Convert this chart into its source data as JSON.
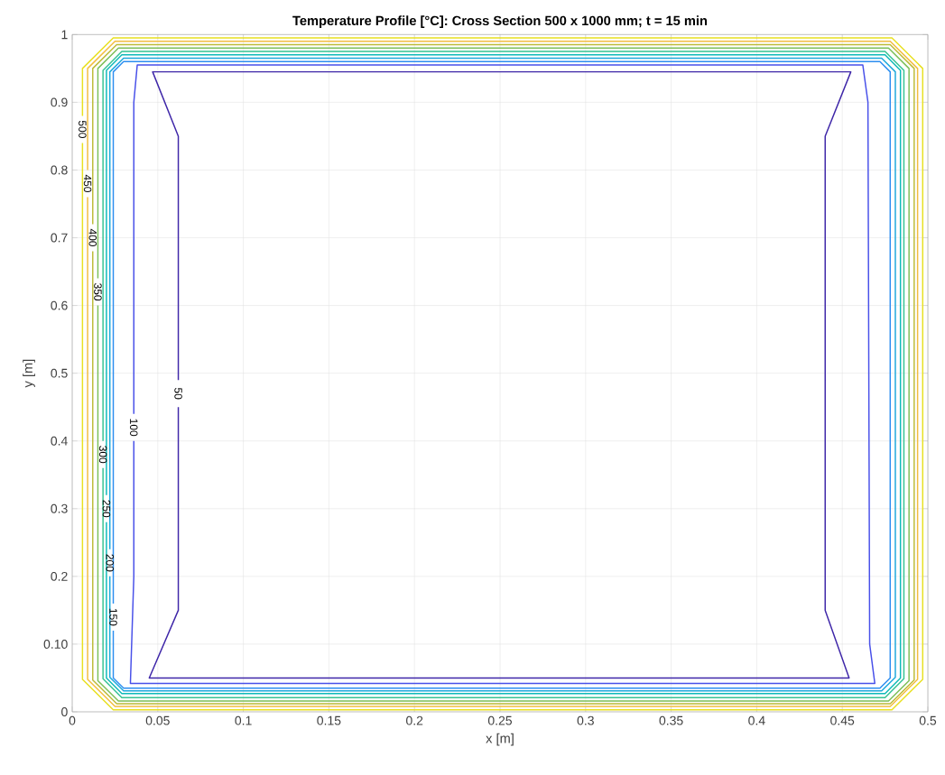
{
  "chart_data": {
    "type": "line",
    "title": "Temperature Profile [°C]: Cross Section 500 x 1000 mm; t = 15 min",
    "xlabel": "x [m]",
    "ylabel": "y [m]",
    "xlim": [
      0,
      0.5
    ],
    "ylim": [
      0,
      1
    ],
    "xticks": [
      0,
      0.05,
      0.1,
      0.15,
      0.2,
      0.25,
      0.3,
      0.35,
      0.4,
      0.45,
      0.5
    ],
    "yticks": [
      0,
      {
        "value": 0.1,
        "label": "0.10"
      },
      0.2,
      0.3,
      0.4,
      0.5,
      0.6,
      0.7,
      0.8,
      0.9,
      1
    ],
    "grid": true,
    "marker": "none",
    "line_style": "solid",
    "series": [
      {
        "name": "50",
        "color": "#3e26a8",
        "x": [
          0.062,
          0.062,
          0.047,
          0.455,
          0.44,
          0.44,
          0.454,
          0.045,
          0.062,
          0.062
        ],
        "values": [
          0.49,
          0.85,
          0.945,
          0.945,
          0.85,
          0.15,
          0.05,
          0.05,
          0.15,
          0.45
        ]
      },
      {
        "name": "100",
        "color": "#4850e9",
        "x": [
          0.036,
          0.036,
          0.038,
          0.462,
          0.465,
          0.466,
          0.469,
          0.034,
          0.036,
          0.036
        ],
        "values": [
          0.44,
          0.9,
          0.955,
          0.955,
          0.9,
          0.1,
          0.042,
          0.042,
          0.2,
          0.4
        ]
      },
      {
        "name": "150",
        "color": "#2c8ef0",
        "x": [
          0.024,
          0.024,
          0.03,
          0.472,
          0.478,
          0.478,
          0.472,
          0.03,
          0.024,
          0.024
        ],
        "values": [
          0.16,
          0.945,
          0.96,
          0.96,
          0.945,
          0.05,
          0.035,
          0.035,
          0.05,
          0.12
        ]
      },
      {
        "name": "200",
        "color": "#1da9dc",
        "x": [
          0.022,
          0.022,
          0.03,
          0.473,
          0.481,
          0.481,
          0.473,
          0.03,
          0.022,
          0.022
        ],
        "values": [
          0.24,
          0.945,
          0.965,
          0.965,
          0.945,
          0.051,
          0.031,
          0.031,
          0.051,
          0.2
        ]
      },
      {
        "name": "250",
        "color": "#0fbab9",
        "x": [
          0.02,
          0.02,
          0.029,
          0.475,
          0.484,
          0.484,
          0.475,
          0.029,
          0.02,
          0.02
        ],
        "values": [
          0.32,
          0.947,
          0.97,
          0.97,
          0.947,
          0.05,
          0.027,
          0.027,
          0.05,
          0.28
        ]
      },
      {
        "name": "300",
        "color": "#35c393",
        "x": [
          0.018,
          0.018,
          0.029,
          0.475,
          0.486,
          0.486,
          0.475,
          0.029,
          0.018,
          0.018
        ],
        "values": [
          0.4,
          0.947,
          0.975,
          0.975,
          0.947,
          0.049,
          0.021,
          0.021,
          0.049,
          0.36
        ]
      },
      {
        "name": "350",
        "color": "#7cbf59",
        "x": [
          0.015,
          0.015,
          0.027,
          0.477,
          0.489,
          0.489,
          0.477,
          0.027,
          0.015,
          0.015
        ],
        "values": [
          0.64,
          0.95,
          0.98,
          0.98,
          0.95,
          0.046,
          0.016,
          0.016,
          0.046,
          0.6
        ]
      },
      {
        "name": "400",
        "color": "#bcbb37",
        "x": [
          0.012,
          0.012,
          0.026,
          0.478,
          0.492,
          0.492,
          0.478,
          0.026,
          0.012,
          0.012
        ],
        "values": [
          0.72,
          0.95,
          0.985,
          0.985,
          0.95,
          0.047,
          0.012,
          0.012,
          0.047,
          0.68
        ]
      },
      {
        "name": "450",
        "color": "#f2bd3f",
        "x": [
          0.009,
          0.009,
          0.025,
          0.478,
          0.494,
          0.494,
          0.478,
          0.025,
          0.009,
          0.009
        ],
        "values": [
          0.8,
          0.95,
          0.99,
          0.99,
          0.95,
          0.048,
          0.008,
          0.008,
          0.048,
          0.76
        ]
      },
      {
        "name": "500",
        "color": "#e8e020",
        "x": [
          0.006,
          0.006,
          0.024,
          0.479,
          0.497,
          0.497,
          0.479,
          0.024,
          0.006,
          0.006
        ],
        "values": [
          0.88,
          0.95,
          0.995,
          0.995,
          0.95,
          0.048,
          0.003,
          0.003,
          0.048,
          0.84
        ]
      }
    ]
  }
}
